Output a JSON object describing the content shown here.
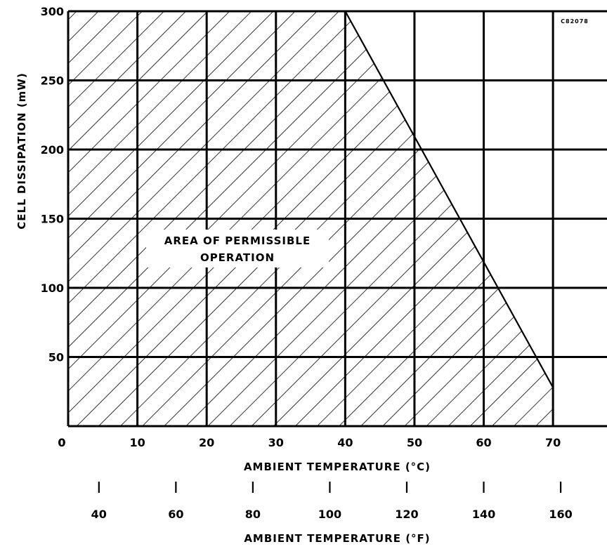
{
  "chart_data": {
    "type": "area",
    "code_label": "C82078",
    "xlabel": "AMBIENT TEMPERATURE (°C)",
    "xlabel2": "AMBIENT TEMPERATURE (°F)",
    "ylabel": "CELL DISSIPATION (mW)",
    "xlim": [
      0,
      78
    ],
    "ylim": [
      0,
      300
    ],
    "x_ticks": [
      0,
      10,
      20,
      30,
      40,
      50,
      60,
      70
    ],
    "x_tick_labels": [
      "0",
      "10",
      "20",
      "30",
      "40",
      "50",
      "60",
      "70"
    ],
    "y_ticks": [
      50,
      100,
      150,
      200,
      250,
      300
    ],
    "y_tick_labels": [
      "50",
      "100",
      "150",
      "200",
      "250",
      "300"
    ],
    "y_zero_label": "0",
    "f_ticks": [
      40,
      60,
      80,
      100,
      120,
      140,
      160
    ],
    "f_tick_labels": [
      "40",
      "60",
      "80",
      "100",
      "120",
      "140",
      "160"
    ],
    "region_label": [
      "AREA OF PERMISSIBLE",
      "OPERATION"
    ],
    "boundary": {
      "x": [
        0,
        40,
        70,
        70
      ],
      "y": [
        300,
        300,
        28,
        0
      ]
    },
    "grid": true
  }
}
